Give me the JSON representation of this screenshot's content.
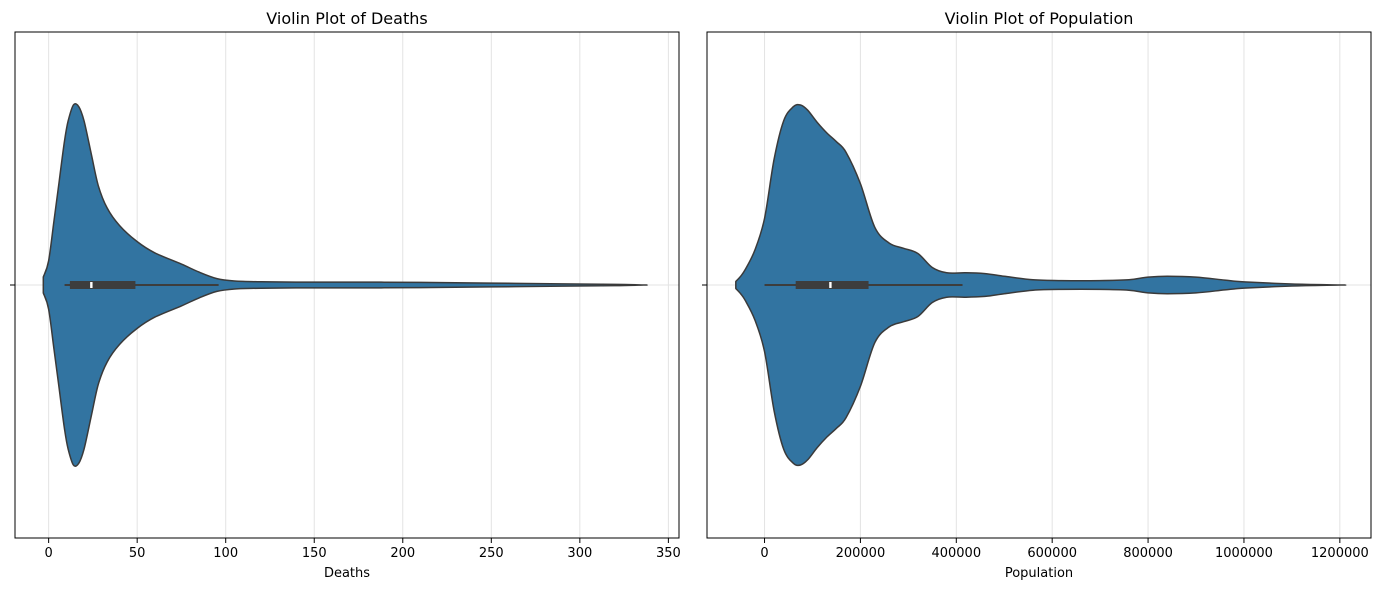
{
  "colors": {
    "violin_fill": "#3274a1",
    "violin_edge": "#3a3a3a",
    "box": "#3d3d3d",
    "median": "#ffffff",
    "grid": "#e3e3e3",
    "frame": "#000000"
  },
  "chart_data": [
    {
      "type": "violin",
      "title": "Violin Plot of Deaths",
      "xlabel": "Deaths",
      "ylabel": "",
      "grid": true,
      "xlim": [
        -19,
        356
      ],
      "xticks": [
        0,
        50,
        100,
        150,
        200,
        250,
        300,
        350
      ],
      "xtick_labels": [
        "0",
        "50",
        "100",
        "150",
        "200",
        "250",
        "300",
        "350"
      ],
      "box": {
        "whisker_low": 9,
        "q1": 12,
        "median": 24,
        "q3": 49,
        "whisker_high": 96
      },
      "density": {
        "x": [
          -3,
          0,
          3,
          6,
          9,
          11,
          14,
          17,
          20,
          24,
          28,
          33,
          40,
          50,
          60,
          75,
          85,
          95,
          105,
          120,
          150,
          180,
          210,
          250,
          290,
          320,
          336
        ],
        "half_width": [
          0.05,
          0.15,
          0.4,
          0.65,
          0.9,
          1.02,
          1.12,
          1.11,
          1.02,
          0.82,
          0.62,
          0.48,
          0.37,
          0.27,
          0.2,
          0.13,
          0.08,
          0.04,
          0.025,
          0.02,
          0.018,
          0.018,
          0.016,
          0.012,
          0.007,
          0.004,
          0.0
        ]
      }
    },
    {
      "type": "violin",
      "title": "Violin Plot of Population",
      "xlabel": "Population",
      "ylabel": "",
      "grid": true,
      "xlim": [
        -120000,
        1265000
      ],
      "xticks": [
        0,
        200000,
        400000,
        600000,
        800000,
        1000000,
        1200000
      ],
      "xtick_labels": [
        "0",
        "200000",
        "400000",
        "600000",
        "800000",
        "1000000",
        "1200000"
      ],
      "box": {
        "whisker_low": 0,
        "q1": 65000,
        "median": 137000,
        "q3": 217000,
        "whisker_high": 413000
      },
      "density": {
        "x": [
          -60000,
          -50000,
          -40000,
          -20000,
          0,
          20000,
          40000,
          60000,
          75000,
          90000,
          110000,
          130000,
          150000,
          170000,
          200000,
          230000,
          260000,
          290000,
          320000,
          350000,
          380000,
          420000,
          460000,
          500000,
          560000,
          620000,
          700000,
          760000,
          800000,
          840000,
          900000,
          960000,
          1000000,
          1100000,
          1200000
        ],
        "half_width": [
          0.02,
          0.05,
          0.09,
          0.2,
          0.38,
          0.72,
          0.94,
          1.02,
          1.03,
          1.0,
          0.93,
          0.87,
          0.82,
          0.76,
          0.58,
          0.33,
          0.24,
          0.21,
          0.18,
          0.1,
          0.07,
          0.07,
          0.065,
          0.05,
          0.03,
          0.025,
          0.025,
          0.03,
          0.045,
          0.05,
          0.045,
          0.028,
          0.018,
          0.006,
          0.0
        ]
      }
    }
  ]
}
